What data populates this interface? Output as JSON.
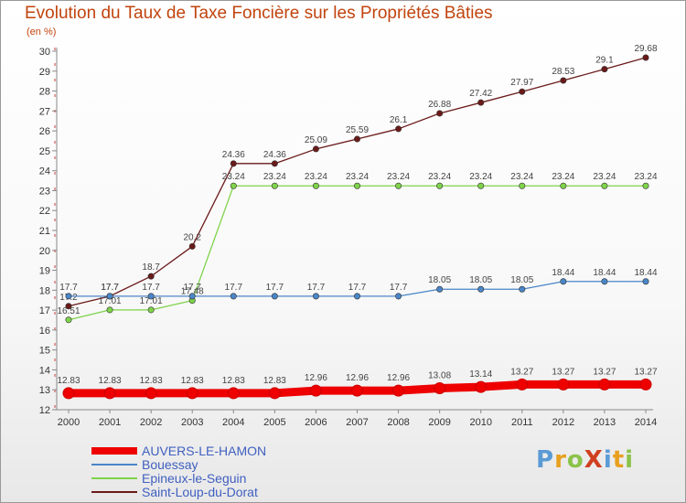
{
  "header": {
    "title": "Evolution du Taux de Taxe Foncière sur les Propriétés Bâties",
    "unit": "(en %)"
  },
  "logo": {
    "text": "ProXiti",
    "colors": [
      "#5b9bd5",
      "#e8a020",
      "#8bc34a",
      "#d04020",
      "#5b9bd5",
      "#e8a020",
      "#8bc34a"
    ]
  },
  "chart_data": {
    "type": "line",
    "title": "Evolution du Taux de Taxe Foncière sur les Propriétés Bâties",
    "ylabel": "(en %)",
    "xlabel": "",
    "x": [
      "2000",
      "2001",
      "2002",
      "2003",
      "2004",
      "2005",
      "2006",
      "2007",
      "2008",
      "2009",
      "2010",
      "2011",
      "2012",
      "2013",
      "2014"
    ],
    "ylim": [
      12,
      30
    ],
    "yticks": [
      12,
      13,
      14,
      15,
      16,
      17,
      18,
      19,
      20,
      21,
      22,
      23,
      24,
      25,
      26,
      27,
      28,
      29,
      30
    ],
    "grid": false,
    "legend_position": "bottom-left",
    "series": [
      {
        "name": "AUVERS-LE-HAMON",
        "color": "#ee0000",
        "values": [
          12.83,
          12.83,
          12.83,
          12.83,
          12.83,
          12.83,
          12.96,
          12.96,
          12.96,
          13.08,
          13.14,
          13.27,
          13.27,
          13.27,
          13.27
        ],
        "labels": [
          "12.83",
          "12.83",
          "12.83",
          "12.83",
          "12.83",
          "12.83",
          "12.96",
          "12.96",
          "12.96",
          "13.08",
          "13.14",
          "13.27",
          "13.27",
          "13.27",
          "13.27"
        ]
      },
      {
        "name": "Bouessay",
        "color": "#4a86c8",
        "values": [
          17.7,
          17.7,
          17.7,
          17.7,
          17.7,
          17.7,
          17.7,
          17.7,
          17.7,
          18.05,
          18.05,
          18.05,
          18.44,
          18.44,
          18.44
        ],
        "labels": [
          "17.7",
          "17.7",
          "17.7",
          "17.7",
          "17.7",
          "17.7",
          "17.7",
          "17.7",
          "17.7",
          "18.05",
          "18.05",
          "18.05",
          "18.44",
          "18.44",
          "18.44"
        ]
      },
      {
        "name": "Epineux-le-Seguin",
        "color": "#7fd34a",
        "values": [
          16.51,
          17.01,
          17.01,
          17.48,
          23.24,
          23.24,
          23.24,
          23.24,
          23.24,
          23.24,
          23.24,
          23.24,
          23.24,
          23.24,
          23.24
        ],
        "labels": [
          "16.51",
          "17.01",
          "17.01",
          "17.48",
          "23.24",
          "23.24",
          "23.24",
          "23.24",
          "23.24",
          "23.24",
          "23.24",
          "23.24",
          "23.24",
          "23.24",
          "23.24"
        ]
      },
      {
        "name": "Saint-Loup-du-Dorat",
        "color": "#6b1a1a",
        "values": [
          17.2,
          17.7,
          18.7,
          20.2,
          24.36,
          24.36,
          25.09,
          25.59,
          26.1,
          26.88,
          27.42,
          27.97,
          28.53,
          29.1,
          29.68
        ],
        "labels": [
          "17.2",
          "17.7",
          "18.7",
          "20.2",
          "24.36",
          "24.36",
          "25.09",
          "25.59",
          "26.1",
          "26.88",
          "27.42",
          "27.97",
          "28.53",
          "29.1",
          "29.68"
        ]
      }
    ]
  }
}
